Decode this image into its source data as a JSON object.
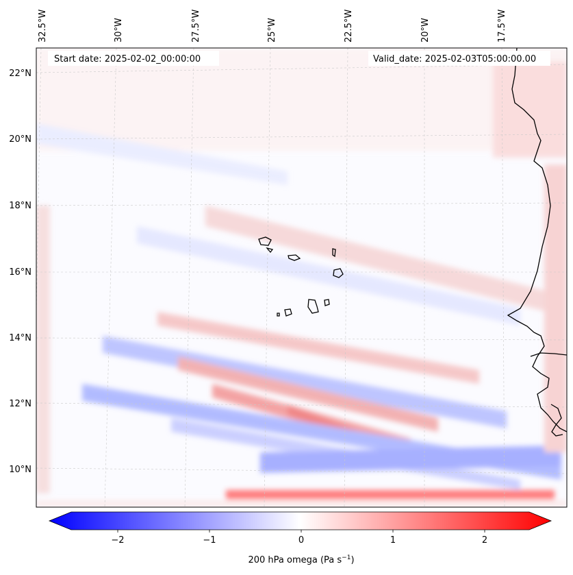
{
  "header": {
    "start_date": "Start date: 2025-02-02_00:00:00",
    "valid_date": "Valid_date: 2025-02-03T05:00:00.00"
  },
  "map": {
    "region": "Eastern tropical Atlantic / Cabo Verde",
    "lon_labels": [
      "32.5°W",
      "30°W",
      "27.5°W",
      "25°W",
      "22.5°W",
      "20°W",
      "17.5°W"
    ],
    "lat_labels": [
      "22°N",
      "20°N",
      "18°N",
      "16°N",
      "14°N",
      "12°N",
      "10°N"
    ],
    "field": "200 hPa omega"
  },
  "colorbar": {
    "ticks": [
      "−2",
      "−1",
      "0",
      "1",
      "2"
    ],
    "label_main": "200 hPa omega (Pa s",
    "label_sup": "−1",
    "label_close": ")",
    "min": -2.6,
    "max": 2.6,
    "colors": {
      "negative": "#0000ff",
      "zero": "#ffffff",
      "positive": "#ff0000"
    }
  }
}
